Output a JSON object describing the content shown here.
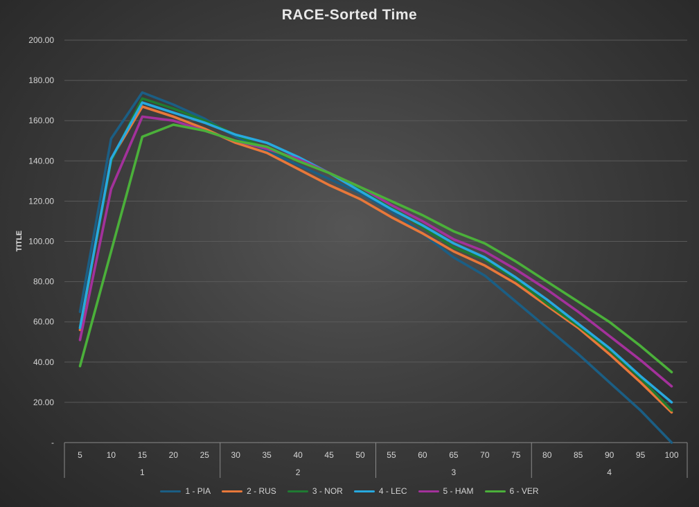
{
  "chart_data": {
    "type": "line",
    "title": "RACE-Sorted Time",
    "ylabel": "TITLE",
    "xlabel": "",
    "ylim": [
      0,
      200
    ],
    "yticks": [
      {
        "value": 0,
        "label": "-"
      },
      {
        "value": 20,
        "label": "20.00"
      },
      {
        "value": 40,
        "label": "40.00"
      },
      {
        "value": 60,
        "label": "60.00"
      },
      {
        "value": 80,
        "label": "80.00"
      },
      {
        "value": 100,
        "label": "100.00"
      },
      {
        "value": 120,
        "label": "120.00"
      },
      {
        "value": 140,
        "label": "140.00"
      },
      {
        "value": 160,
        "label": "160.00"
      },
      {
        "value": 180,
        "label": "180.00"
      },
      {
        "value": 200,
        "label": "200.00"
      }
    ],
    "categories": [
      "5",
      "10",
      "15",
      "20",
      "25",
      "30",
      "35",
      "40",
      "45",
      "50",
      "55",
      "60",
      "65",
      "70",
      "75",
      "80",
      "85",
      "90",
      "95",
      "100"
    ],
    "groups": [
      {
        "label": "1",
        "count": 5
      },
      {
        "label": "2",
        "count": 5
      },
      {
        "label": "3",
        "count": 5
      },
      {
        "label": "4",
        "count": 5
      }
    ],
    "grid": true,
    "legend_position": "bottom",
    "series": [
      {
        "name": "1 - PIA",
        "color": "#1b5e84",
        "values": [
          65,
          151,
          174,
          168,
          161,
          152,
          145,
          138,
          131,
          124,
          115,
          104,
          92,
          83,
          70,
          57,
          44,
          30,
          16,
          0
        ]
      },
      {
        "name": "2 - RUS",
        "color": "#e8783a",
        "values": [
          56,
          141,
          167,
          162,
          156,
          149,
          144,
          136,
          128,
          121,
          112,
          104,
          95,
          88,
          79,
          68,
          57,
          44,
          30,
          15
        ]
      },
      {
        "name": "3 - NOR",
        "color": "#1f7a32",
        "values": [
          57,
          140,
          171,
          166,
          160,
          153,
          146,
          140,
          134,
          126,
          117,
          107,
          97,
          91,
          81,
          69,
          58,
          46,
          32,
          16
        ]
      },
      {
        "name": "4 - LEC",
        "color": "#27a9df",
        "values": [
          57,
          141,
          169,
          164,
          159,
          153,
          149,
          142,
          134,
          125,
          116,
          108,
          99,
          92,
          82,
          71,
          59,
          47,
          33,
          20
        ]
      },
      {
        "name": "5 - HAM",
        "color": "#a3319b",
        "values": [
          51,
          126,
          162,
          160,
          155,
          150,
          146,
          141,
          134,
          127,
          118,
          110,
          101,
          95,
          86,
          76,
          65,
          53,
          41,
          28
        ]
      },
      {
        "name": "6 - VER",
        "color": "#4bb03a",
        "values": [
          38,
          95,
          152,
          158,
          155,
          150,
          147,
          140,
          134,
          127,
          120,
          113,
          105,
          99,
          90,
          80,
          70,
          60,
          48,
          35
        ]
      }
    ]
  }
}
